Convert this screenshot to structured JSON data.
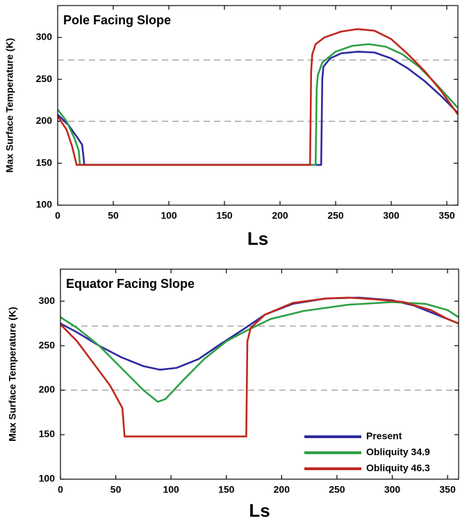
{
  "chart_data": [
    {
      "type": "line",
      "title": "Pole Facing Slope",
      "x_label": "Ls",
      "y_label": "Max Surface Temperature (K)",
      "xlim": [
        0,
        360
      ],
      "xticks": [
        0,
        50,
        100,
        150,
        200,
        250,
        300,
        350
      ],
      "ylim": [
        100,
        338
      ],
      "yticks": [
        100,
        150,
        200,
        250,
        300
      ],
      "hlines": [
        200,
        273
      ],
      "series": [
        {
          "color": "#2e2aa0",
          "x": [
            0,
            10,
            18,
            22,
            23,
            24,
            237,
            238,
            239,
            245,
            255,
            270,
            285,
            300,
            315,
            330,
            345,
            360
          ],
          "values": [
            208,
            195,
            180,
            172,
            160,
            148,
            148,
            250,
            265,
            275,
            281,
            283,
            282,
            275,
            263,
            248,
            230,
            210
          ]
        },
        {
          "color": "#2ea046",
          "x": [
            0,
            8,
            15,
            19,
            20,
            232,
            233,
            234,
            238,
            250,
            265,
            280,
            295,
            310,
            325,
            340,
            360
          ],
          "values": [
            214,
            200,
            180,
            165,
            148,
            148,
            240,
            255,
            270,
            283,
            290,
            292,
            289,
            280,
            265,
            245,
            216
          ]
        },
        {
          "color": "#c0281e",
          "x": [
            0,
            8,
            13,
            17,
            227,
            228,
            229,
            232,
            240,
            255,
            270,
            285,
            300,
            315,
            330,
            345,
            360
          ],
          "values": [
            206,
            190,
            170,
            148,
            148,
            260,
            280,
            292,
            300,
            307,
            310,
            308,
            298,
            280,
            260,
            236,
            208
          ]
        }
      ]
    },
    {
      "type": "line",
      "title": "Equator Facing Slope",
      "x_label": "Ls",
      "y_label": "Max Surface Temperature (K)",
      "xlim": [
        0,
        360
      ],
      "xticks": [
        0,
        50,
        100,
        150,
        200,
        250,
        300,
        350
      ],
      "ylim": [
        100,
        336
      ],
      "yticks": [
        100,
        150,
        200,
        250,
        300
      ],
      "hlines": [
        200,
        272
      ],
      "legend": "lower right",
      "series": [
        {
          "name": "Present",
          "color": "#2e2aa0",
          "x": [
            0,
            15,
            35,
            55,
            75,
            90,
            105,
            125,
            145,
            165,
            185,
            210,
            240,
            270,
            300,
            320,
            340,
            360
          ],
          "values": [
            275,
            265,
            250,
            237,
            227,
            223,
            225,
            235,
            252,
            268,
            285,
            297,
            303,
            304,
            301,
            295,
            285,
            275
          ]
        },
        {
          "name": "Obliquity 34.9",
          "color": "#2ea046",
          "x": [
            0,
            15,
            35,
            55,
            75,
            88,
            95,
            110,
            130,
            150,
            170,
            190,
            220,
            260,
            300,
            330,
            350,
            360
          ],
          "values": [
            282,
            270,
            250,
            225,
            200,
            187,
            190,
            210,
            235,
            255,
            268,
            280,
            289,
            296,
            299,
            297,
            290,
            282
          ]
        },
        {
          "name": "Obliquity 46.3",
          "color": "#c0281e",
          "x": [
            0,
            15,
            30,
            45,
            56,
            58,
            168,
            169,
            172,
            185,
            210,
            240,
            260,
            285,
            310,
            335,
            350,
            360
          ],
          "values": [
            274,
            255,
            230,
            205,
            180,
            148,
            148,
            255,
            270,
            285,
            298,
            303,
            304,
            302,
            299,
            290,
            280,
            275
          ]
        }
      ]
    }
  ]
}
